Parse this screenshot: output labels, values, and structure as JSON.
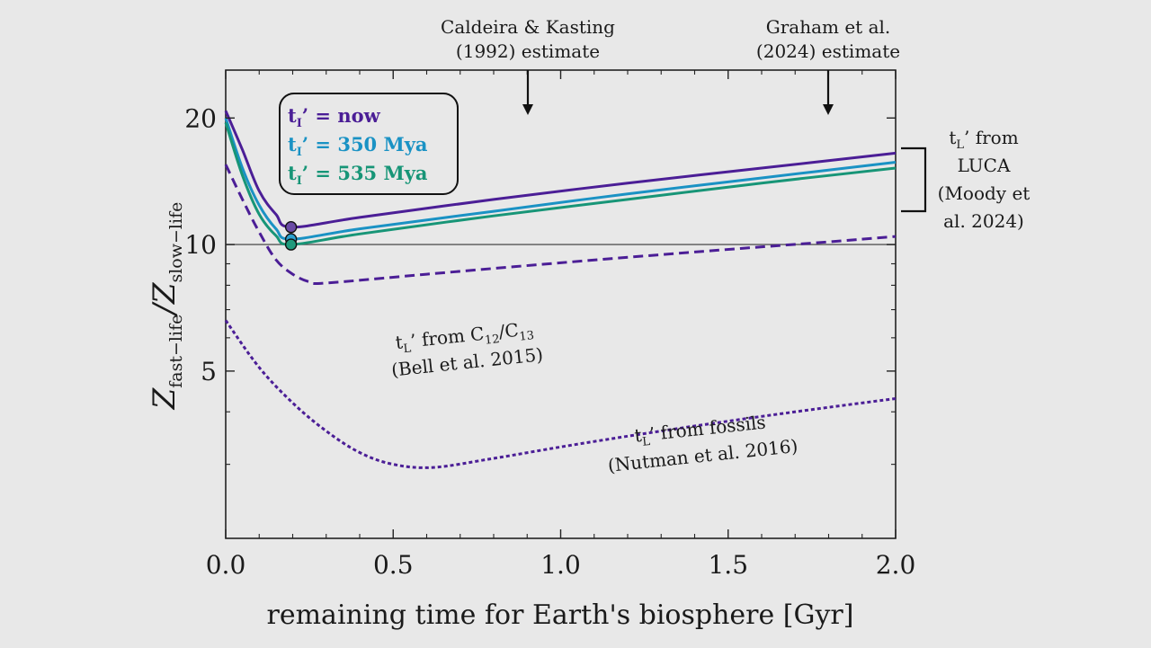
{
  "chart_data": {
    "type": "line",
    "xlabel": "remaining time for Earth's biosphere [Gyr]",
    "ylabel": {
      "main_1": "Z",
      "sub_1": "fast−life",
      "slash": "/",
      "main_2": "Z",
      "sub_2": "slow−life"
    },
    "xlim": [
      0.0,
      2.0
    ],
    "ylim": [
      2.0,
      26.0
    ],
    "yscale": "log",
    "xticks": [
      0.0,
      0.5,
      1.0,
      1.5,
      2.0
    ],
    "xtick_labels": [
      "0.0",
      "0.5",
      "1.0",
      "1.5",
      "2.0"
    ],
    "yticks": [
      5,
      10,
      20
    ],
    "ytick_labels": [
      "5",
      "10",
      "20"
    ],
    "grid": false,
    "reference_line": {
      "y": 10
    },
    "legend": {
      "placement": "top-left",
      "entries": [
        {
          "sym": "t",
          "sub": "I",
          "text": "’ = now",
          "color": "#4b1e96"
        },
        {
          "sym": "t",
          "sub": "I",
          "text": "’ = 350 Mya",
          "color": "#1a92c4"
        },
        {
          "sym": "t",
          "sub": "I",
          "text": "’ = 535 Mya",
          "color": "#179577"
        }
      ]
    },
    "series": [
      {
        "style": "solid",
        "color": "#4b1e96",
        "x": [
          0.0,
          0.05,
          0.1,
          0.15,
          0.195,
          0.4,
          0.8,
          1.2,
          1.6,
          2.0
        ],
        "y": [
          20.8,
          16.8,
          13.4,
          11.8,
          11.0,
          11.6,
          12.8,
          14.0,
          15.2,
          16.5
        ]
      },
      {
        "style": "solid",
        "color": "#1a92c4",
        "x": [
          0.0,
          0.05,
          0.1,
          0.15,
          0.195,
          0.4,
          0.8,
          1.2,
          1.6,
          2.0
        ],
        "y": [
          20.0,
          15.2,
          12.4,
          10.9,
          10.3,
          10.9,
          12.0,
          13.2,
          14.4,
          15.7
        ]
      },
      {
        "style": "solid",
        "color": "#179577",
        "x": [
          0.0,
          0.05,
          0.1,
          0.15,
          0.195,
          0.4,
          0.8,
          1.2,
          1.6,
          2.0
        ],
        "y": [
          19.5,
          14.6,
          11.8,
          10.5,
          10.0,
          10.6,
          11.7,
          12.8,
          14.0,
          15.2
        ]
      },
      {
        "style": "dashed",
        "color": "#4b1e96",
        "x": [
          0.0,
          0.05,
          0.1,
          0.15,
          0.2,
          0.25,
          0.3,
          0.6,
          1.0,
          1.4,
          1.8,
          2.0
        ],
        "y": [
          15.5,
          12.8,
          10.7,
          9.2,
          8.5,
          8.15,
          8.1,
          8.5,
          9.05,
          9.6,
          10.15,
          10.45
        ]
      },
      {
        "style": "dotted",
        "color": "#4b1e96",
        "x": [
          0.0,
          0.1,
          0.2,
          0.3,
          0.4,
          0.5,
          0.62,
          0.8,
          1.0,
          1.2,
          1.4,
          1.6,
          1.8,
          2.0
        ],
        "y": [
          6.6,
          5.1,
          4.2,
          3.6,
          3.2,
          3.0,
          2.95,
          3.1,
          3.3,
          3.5,
          3.7,
          3.9,
          4.1,
          4.3
        ]
      }
    ],
    "markers": [
      {
        "x": 0.195,
        "y": 11.0,
        "color": "#6b4ba6"
      },
      {
        "x": 0.195,
        "y": 10.3,
        "color": "#2aa0cf"
      },
      {
        "x": 0.195,
        "y": 10.0,
        "color": "#1f9a7c"
      }
    ],
    "arrows": [
      {
        "x": 0.9,
        "line1": "Caldeira & Kasting",
        "line2": "(1992) estimate"
      },
      {
        "x": 1.8,
        "line1": "Graham et al.",
        "line2": "(2024) estimate"
      }
    ],
    "annotations": {
      "luca": {
        "sym": "t",
        "sub": "L",
        "line1": "’ from",
        "line2": "LUCA",
        "line3": "(Moody et",
        "line4": "al. 2024)"
      },
      "bell": {
        "sym": "t",
        "sub": "L",
        "text1": "’ from C",
        "sub_a": "12",
        "text2": "/C",
        "sub_b": "13",
        "line2": "(Bell et al. 2015)"
      },
      "nutman": {
        "sym": "t",
        "sub": "L",
        "text1": "’ from fossils",
        "line2": "(Nutman et al. 2016)"
      }
    }
  }
}
